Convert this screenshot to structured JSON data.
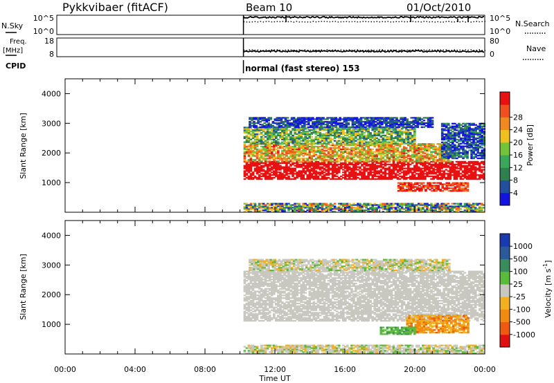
{
  "header": {
    "radar": "Pykkvibaer (fitACF)",
    "beam": "Beam 10",
    "date": "01/Oct/2010"
  },
  "status": {
    "nsky_label": "N.Sky",
    "nsky_top": "10^5",
    "nsky_bottom": "10^0",
    "nsearch_top": "10^5",
    "nsearch_bottom": "10^0",
    "nsearch_label": "N.Search",
    "freq_label_1": "Freq.",
    "freq_label_2": "[MHz]",
    "freq_top": "18",
    "freq_bottom": "8",
    "nave_top": "80",
    "nave_bottom": "0",
    "nave_label": "Nave",
    "cpid_label": "CPID",
    "cpid_value": "normal (fast stereo) 153"
  },
  "x_axis": {
    "title": "Time UT",
    "ticks": [
      "00:00",
      "04:00",
      "08:00",
      "12:00",
      "16:00",
      "20:00",
      "00:00"
    ],
    "hours": [
      0,
      4,
      8,
      12,
      16,
      20,
      24
    ]
  },
  "colors": {
    "power": [
      "#1414e0",
      "#234f9f",
      "#2f7f4f",
      "#3aa85a",
      "#72c23a",
      "#f0c020",
      "#f08a20",
      "#f05020",
      "#e81010"
    ],
    "velocity": [
      "#e01010",
      "#ee5a10",
      "#f08a10",
      "#f0b020",
      "#c8c8c0",
      "#5aba3a",
      "#3a8c5a",
      "#2a5a9a",
      "#1a3ab0"
    ]
  },
  "chart_data": [
    {
      "type": "line",
      "name": "status-panel",
      "series": [
        {
          "name": "N.Sky",
          "x": [
            10.2,
            12,
            14,
            16,
            18,
            20,
            22,
            24
          ],
          "values": [
            60000,
            60000,
            65000,
            62000,
            60000,
            63000,
            61000,
            60000
          ]
        },
        {
          "name": "Freq.",
          "x": [
            10.2,
            12,
            14,
            16,
            18,
            20,
            22,
            24
          ],
          "values": [
            10.5,
            10.6,
            10.5,
            10.6,
            10.5,
            10.6,
            10.5,
            10.5
          ]
        },
        {
          "name": "CPID",
          "x": [
            10.2,
            24
          ],
          "values": [
            153,
            153
          ]
        }
      ],
      "xlim": [
        0,
        24
      ]
    },
    {
      "type": "heatmap",
      "name": "power",
      "ylabel": "Slant Range [km]",
      "xlabel": "Time UT",
      "xlim": [
        0,
        24
      ],
      "ylim": [
        0,
        4500
      ],
      "yticks": [
        1000,
        2000,
        3000,
        4000
      ],
      "colorbar_label": "Power [dB]",
      "colorbar_ticks": [
        "4",
        "8",
        "12",
        "16",
        "20",
        "24",
        "28"
      ],
      "colorbar_values": [
        4,
        8,
        12,
        16,
        20,
        24,
        28
      ],
      "bands": [
        {
          "t0": 10.2,
          "t1": 24,
          "r0": 1100,
          "r1": 1700,
          "v0": 26,
          "v1": 32
        },
        {
          "t0": 10.2,
          "t1": 22,
          "r0": 1700,
          "r1": 2300,
          "v0": 14,
          "v1": 26
        },
        {
          "t0": 10.2,
          "t1": 20,
          "r0": 2300,
          "r1": 2850,
          "v0": 8,
          "v1": 20
        },
        {
          "t0": 10.5,
          "t1": 21,
          "r0": 2850,
          "r1": 3200,
          "v0": 2,
          "v1": 12
        },
        {
          "t0": 19,
          "t1": 23,
          "r0": 700,
          "r1": 1000,
          "v0": 22,
          "v1": 30
        },
        {
          "t0": 21.5,
          "t1": 24,
          "r0": 1800,
          "r1": 3000,
          "v0": 2,
          "v1": 14
        },
        {
          "t0": 10.2,
          "t1": 24,
          "r0": 0,
          "r1": 300,
          "v0": 4,
          "v1": 24
        }
      ]
    },
    {
      "type": "heatmap",
      "name": "velocity",
      "ylabel": "Slant Range [km]",
      "xlabel": "Time UT",
      "xlim": [
        0,
        24
      ],
      "ylim": [
        0,
        4500
      ],
      "yticks": [
        1000,
        2000,
        3000,
        4000
      ],
      "colorbar_label_main": "Velocity  [m s",
      "colorbar_label_sup": "-1",
      "colorbar_label_end": "]",
      "colorbar_ticks": [
        "-1000",
        "-500",
        "-100",
        "-25",
        "25",
        "100",
        "500",
        "1000"
      ],
      "colorbar_values": [
        -1000,
        -500,
        -100,
        -25,
        25,
        100,
        500,
        1000
      ],
      "bands": [
        {
          "t0": 10.2,
          "t1": 24,
          "r0": 1100,
          "r1": 2800,
          "v0": -20,
          "v1": 20
        },
        {
          "t0": 19.5,
          "t1": 23,
          "r0": 700,
          "r1": 1300,
          "v0": -600,
          "v1": -100
        },
        {
          "t0": 18,
          "t1": 20,
          "r0": 650,
          "r1": 900,
          "v0": 100,
          "v1": 400
        },
        {
          "t0": 10.5,
          "t1": 22,
          "r0": 2800,
          "r1": 3200,
          "v0": -200,
          "v1": 200
        },
        {
          "t0": 10.2,
          "t1": 24,
          "r0": 0,
          "r1": 300,
          "v0": -200,
          "v1": 200
        }
      ]
    }
  ]
}
